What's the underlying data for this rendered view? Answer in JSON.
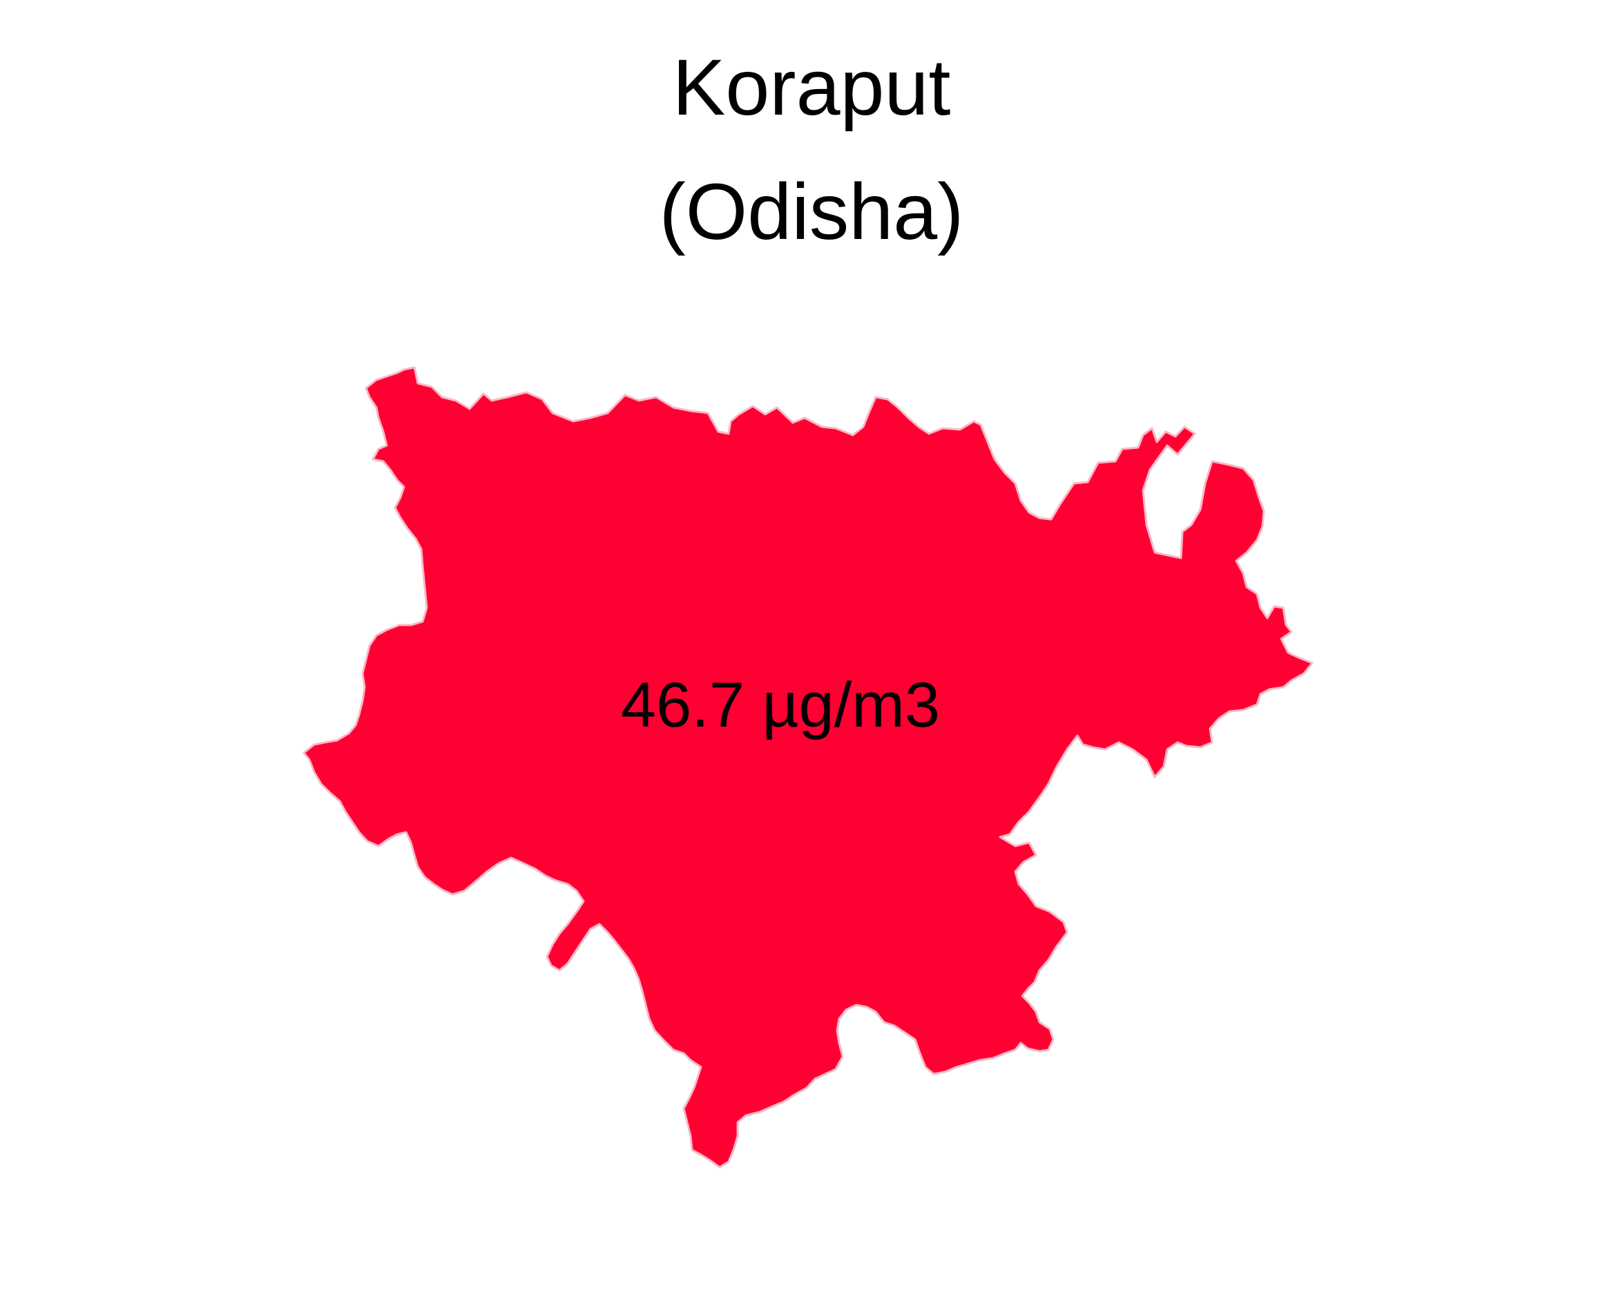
{
  "title": {
    "district": "Koraput",
    "state": "(Odisha)"
  },
  "region": {
    "value_label": "46.7 µg/m3",
    "value": 46.7,
    "unit": "µg/m3",
    "fill_color": "#ff0033",
    "stroke_color": "#f7b8c4"
  }
}
